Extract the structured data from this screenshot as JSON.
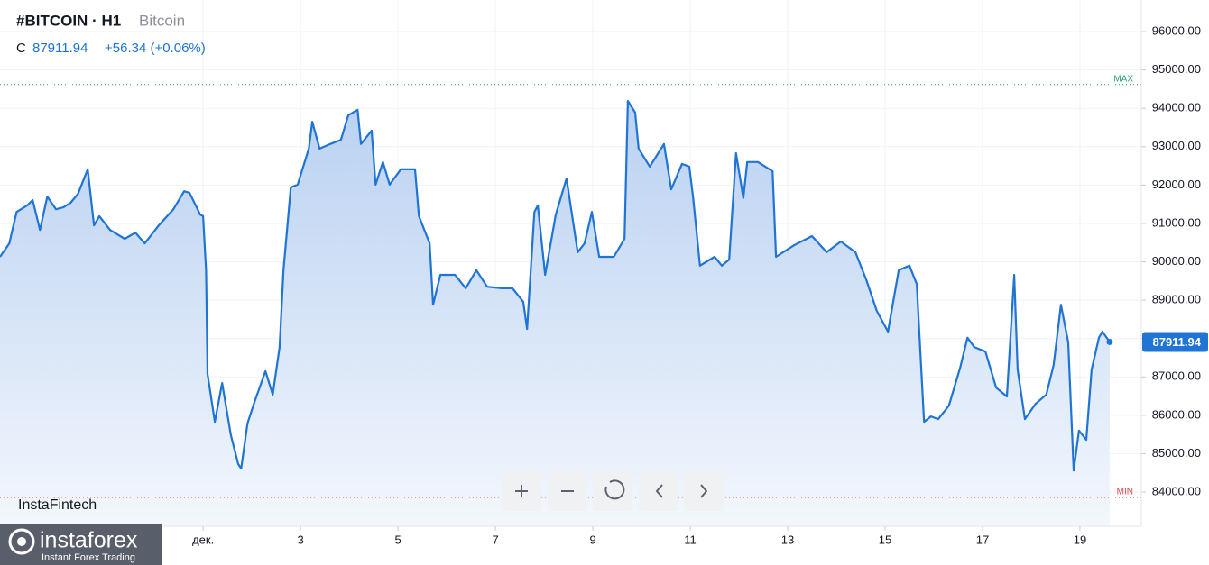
{
  "chart_data": {
    "type": "area",
    "title": "#BITCOIN · H1",
    "subtitle": "Bitcoin",
    "header": {
      "label": "C",
      "price": "87911.94",
      "change": "+56.34 (+0.06%)"
    },
    "watermark": "InstaFintech",
    "logo": {
      "name": "instaforex",
      "tagline": "Instant Forex Trading"
    },
    "color": "#1f74d4",
    "x": [
      -3.17,
      -2.98,
      -2.83,
      -2.61,
      -2.5,
      -2.35,
      -2.2,
      -2.02,
      -1.87,
      -1.72,
      -1.57,
      -1.37,
      -1.24,
      -1.13,
      -0.91,
      -0.61,
      -0.39,
      -0.2,
      0.09,
      0.39,
      0.61,
      0.72,
      0.94,
      1.0,
      1.06,
      1.09,
      1.24,
      1.39,
      1.57,
      1.72,
      1.78,
      1.91,
      2.06,
      2.28,
      2.43,
      2.57,
      2.65,
      2.8,
      2.94,
      3.17,
      3.24,
      3.39,
      3.61,
      3.83,
      3.98,
      4.17,
      4.24,
      4.46,
      4.54,
      4.69,
      4.83,
      5.06,
      5.35,
      5.43,
      5.65,
      5.72,
      5.87,
      6.17,
      6.39,
      6.61,
      6.83,
      7.13,
      7.35,
      7.57,
      7.65,
      7.8,
      7.87,
      8.02,
      8.24,
      8.46,
      8.69,
      8.83,
      8.98,
      9.13,
      9.43,
      9.65,
      9.72,
      9.87,
      9.94,
      10.17,
      10.46,
      10.61,
      10.83,
      10.98,
      11.06,
      11.2,
      11.5,
      11.65,
      11.8,
      11.94,
      12.09,
      12.17,
      12.39,
      12.69,
      12.76,
      13.13,
      13.5,
      13.8,
      14.09,
      14.39,
      14.61,
      14.83,
      15.06,
      15.28,
      15.5,
      15.65,
      15.8,
      15.94,
      16.09,
      16.31,
      16.54,
      16.69,
      16.83,
      17.06,
      17.28,
      17.5,
      17.65,
      17.72,
      17.87,
      18.09,
      18.31,
      18.46,
      18.61,
      18.76,
      18.87,
      18.98,
      19.13,
      19.24,
      19.39,
      19.46,
      19.61
    ],
    "series": [
      {
        "name": "Bitcoin",
        "color": "#1f74d4",
        "values": [
          90130,
          90480,
          91300,
          91470,
          91610,
          90830,
          91700,
          91370,
          91420,
          91540,
          91770,
          92410,
          90950,
          91190,
          90830,
          90600,
          90760,
          90480,
          90950,
          91370,
          91840,
          91800,
          91230,
          91190,
          89780,
          87080,
          85830,
          86840,
          85480,
          84730,
          84610,
          85790,
          86370,
          87150,
          86540,
          87780,
          89780,
          91940,
          92010,
          92950,
          93650,
          92950,
          93070,
          93180,
          93820,
          93960,
          93070,
          93420,
          92010,
          92600,
          92010,
          92410,
          92410,
          91190,
          90480,
          88880,
          89660,
          89660,
          89310,
          89780,
          89350,
          89310,
          89310,
          88960,
          88250,
          91300,
          91470,
          89660,
          91230,
          92170,
          90250,
          90480,
          91300,
          90130,
          90130,
          90600,
          94190,
          93890,
          92950,
          92480,
          93070,
          91890,
          92550,
          92480,
          91660,
          89900,
          90130,
          89900,
          90060,
          92830,
          91660,
          92600,
          92600,
          92360,
          90130,
          90430,
          90670,
          90250,
          90530,
          90250,
          89540,
          88720,
          88180,
          89780,
          89900,
          89420,
          85830,
          85970,
          85900,
          86250,
          87240,
          88020,
          87780,
          87660,
          86720,
          86490,
          89660,
          87190,
          85900,
          86300,
          86540,
          87310,
          88880,
          87900,
          84560,
          85600,
          85360,
          87190,
          88020,
          88180,
          87911.94
        ]
      }
    ],
    "xlim": [
      -3.17,
      20.26
    ],
    "xticks": [
      {
        "value": 1,
        "label": "дек."
      },
      3,
      5,
      7,
      9,
      11,
      13,
      15,
      17,
      19
    ],
    "ylim": [
      83108,
      96823
    ],
    "yticks": [
      {
        "value": 84000,
        "label": "84000.00"
      },
      {
        "value": 85000,
        "label": "85000.00"
      },
      {
        "value": 86000,
        "label": "86000.00"
      },
      {
        "value": 87000,
        "label": "87000.00"
      },
      {
        "value": 88000,
        "label": "88000.00"
      },
      {
        "value": 89000,
        "label": "89000.00"
      },
      {
        "value": 90000,
        "label": "90000.00"
      },
      {
        "value": 91000,
        "label": "91000.00"
      },
      {
        "value": 92000,
        "label": "92000.00"
      },
      {
        "value": 93000,
        "label": "93000.00"
      },
      {
        "value": 94000,
        "label": "94000.00"
      },
      {
        "value": 95000,
        "label": "95000.00"
      },
      {
        "value": 96000,
        "label": "96000.00"
      }
    ],
    "last_price": 87911.94,
    "max": {
      "value": 94620,
      "label": "MAX"
    },
    "min": {
      "value": 83860,
      "label": "MIN"
    },
    "grid": true
  }
}
